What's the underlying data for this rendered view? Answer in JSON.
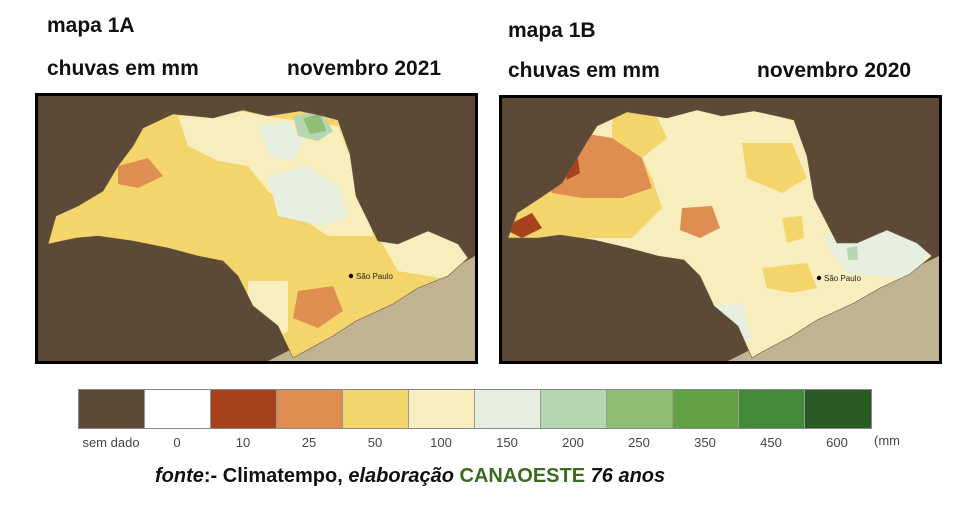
{
  "map_a": {
    "title": "mapa 1A",
    "subtitle": "chuvas em mm",
    "period": "novembro 2021",
    "city_label": "São Paulo"
  },
  "map_b": {
    "title": "mapa 1B",
    "subtitle": "chuvas em mm",
    "period": "novembro 2020",
    "city_label": "São Paulo"
  },
  "legend": {
    "unit": "(mm",
    "items": [
      {
        "label": "sem dado",
        "color": "#5c4a37"
      },
      {
        "label": "0",
        "color": "#ffffff"
      },
      {
        "label": "10",
        "color": "#a7421d"
      },
      {
        "label": "25",
        "color": "#df8e52"
      },
      {
        "label": "50",
        "color": "#f4d56b"
      },
      {
        "label": "100",
        "color": "#f8eebd"
      },
      {
        "label": "150",
        "color": "#e6eedf"
      },
      {
        "label": "200",
        "color": "#b5d6b1"
      },
      {
        "label": "250",
        "color": "#8fbe75"
      },
      {
        "label": "350",
        "color": "#62a243"
      },
      {
        "label": "450",
        "color": "#458a3a"
      },
      {
        "label": "600",
        "color": "#2a5a24"
      }
    ]
  },
  "fonte": {
    "prefix": "fonte",
    "separator": ":- Climatempo, ",
    "elab": "elaboração",
    "org": "CANAOESTE",
    "suffix": "76 anos"
  }
}
